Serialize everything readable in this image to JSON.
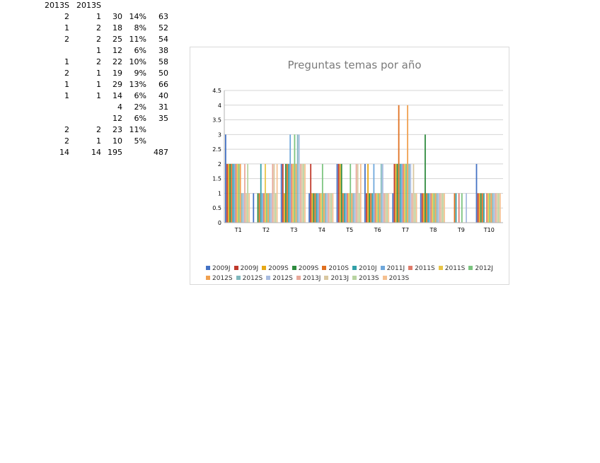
{
  "sheet": {
    "header": [
      "2013S",
      "2013S",
      "",
      "",
      ""
    ],
    "rows": [
      [
        "2",
        "1",
        "30",
        "14%",
        "63"
      ],
      [
        "1",
        "2",
        "18",
        "8%",
        "52"
      ],
      [
        "2",
        "2",
        "25",
        "11%",
        "54"
      ],
      [
        "",
        "1",
        "12",
        "6%",
        "38"
      ],
      [
        "1",
        "2",
        "22",
        "10%",
        "58"
      ],
      [
        "2",
        "1",
        "19",
        "9%",
        "50"
      ],
      [
        "1",
        "1",
        "29",
        "13%",
        "66"
      ],
      [
        "1",
        "1",
        "14",
        "6%",
        "40"
      ],
      [
        "",
        "",
        "4",
        "2%",
        "31"
      ],
      [
        "",
        "",
        "12",
        "6%",
        "35"
      ],
      [
        "2",
        "2",
        "23",
        "11%",
        ""
      ],
      [
        "2",
        "1",
        "10",
        "5%",
        ""
      ],
      [
        "14",
        "14",
        "195",
        "",
        "487"
      ]
    ]
  },
  "chart_data": {
    "type": "bar",
    "title": "Preguntas temas por año",
    "xlabel": "",
    "ylabel": "",
    "ylim": [
      0,
      4.5
    ],
    "yticks": [
      "0",
      "0.5",
      "1",
      "1.5",
      "2",
      "2.5",
      "3",
      "3.5",
      "4",
      "4.5"
    ],
    "grid": true,
    "legend": "bottom",
    "categories": [
      "T1",
      "T2",
      "T3",
      "T4",
      "T5",
      "T6",
      "T7",
      "T8",
      "T9",
      "T10"
    ],
    "series": [
      {
        "name": "2009J",
        "color": "#4472c4",
        "values": [
          3,
          1,
          2,
          1,
          2,
          2,
          1,
          1,
          0,
          2
        ]
      },
      {
        "name": "2009J",
        "color": "#c0392b",
        "values": [
          2,
          0,
          2,
          2,
          2,
          1,
          2,
          1,
          0,
          1
        ]
      },
      {
        "name": "2009S",
        "color": "#e6a817",
        "values": [
          2,
          0,
          1,
          1,
          2,
          2,
          2,
          1,
          0,
          1
        ]
      },
      {
        "name": "2009S",
        "color": "#2e8b3e",
        "values": [
          2,
          1,
          2,
          1,
          2,
          1,
          2,
          3,
          0,
          1
        ]
      },
      {
        "name": "2010S",
        "color": "#e07020",
        "values": [
          2,
          1,
          2,
          1,
          1,
          1,
          4,
          1,
          1,
          1
        ]
      },
      {
        "name": "2010J",
        "color": "#31a0a8",
        "values": [
          2,
          2,
          2,
          1,
          1,
          1,
          2,
          1,
          1,
          1
        ]
      },
      {
        "name": "2011J",
        "color": "#6fa8dc",
        "values": [
          2,
          1,
          3,
          1,
          1,
          2,
          2,
          1,
          0,
          0
        ]
      },
      {
        "name": "2011S",
        "color": "#e07b6a",
        "values": [
          2,
          1,
          2,
          1,
          1,
          1,
          2,
          1,
          1,
          1
        ]
      },
      {
        "name": "2011S",
        "color": "#e8c547",
        "values": [
          2,
          2,
          2,
          1,
          1,
          1,
          2,
          1,
          0,
          1
        ]
      },
      {
        "name": "2012J",
        "color": "#7bc47f",
        "values": [
          2,
          1,
          3,
          2,
          2,
          1,
          2,
          1,
          1,
          1
        ]
      },
      {
        "name": "2012S",
        "color": "#f0a050",
        "values": [
          2,
          1,
          2,
          1,
          1,
          1,
          4,
          1,
          0,
          1
        ]
      },
      {
        "name": "2012S",
        "color": "#7fb8bd",
        "values": [
          1,
          1,
          3,
          1,
          1,
          2,
          2,
          1,
          0,
          1
        ]
      },
      {
        "name": "2012S",
        "color": "#a8bce0",
        "values": [
          1,
          1,
          3,
          1,
          1,
          2,
          2,
          1,
          1,
          1
        ]
      },
      {
        "name": "2013J",
        "color": "#e8a89a",
        "values": [
          2,
          2,
          2,
          1,
          2,
          1,
          1,
          1,
          0,
          1
        ]
      },
      {
        "name": "2013J",
        "color": "#d9c8a0",
        "values": [
          1,
          2,
          2,
          1,
          2,
          1,
          2,
          1,
          0,
          1
        ]
      },
      {
        "name": "2013S",
        "color": "#b8d4a0",
        "values": [
          2,
          1,
          2,
          1,
          1,
          1,
          1,
          1,
          0,
          1
        ]
      },
      {
        "name": "2013S",
        "color": "#f5c090",
        "values": [
          1,
          2,
          2,
          1,
          2,
          1,
          1,
          1,
          0,
          1
        ]
      }
    ]
  }
}
